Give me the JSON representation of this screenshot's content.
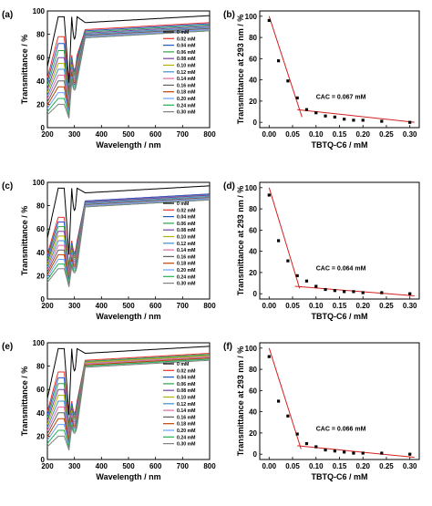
{
  "chart_data": [
    {
      "panel_label": "(a)",
      "type": "line",
      "xlabel": "Wavelength / nm",
      "ylabel": "Transmittance / %",
      "xlim": [
        200,
        800
      ],
      "ylim": [
        0,
        100
      ],
      "xticks": [
        "200",
        "300",
        "400",
        "500",
        "600",
        "700",
        "800"
      ],
      "yticks": [
        "0",
        "20",
        "40",
        "60",
        "80",
        "100"
      ],
      "legend_position": "right-middle",
      "colors": [
        "#000000",
        "#e8312b",
        "#2456c9",
        "#30a24a",
        "#7a3fa0",
        "#b0b000",
        "#3b8fd0",
        "#e066a8",
        "#606060",
        "#c04000",
        "#6aa0ff",
        "#20b050",
        "#808080"
      ],
      "series": [
        {
          "name": "0 mM",
          "dip": 95,
          "plateau": 96,
          "valley": 95
        },
        {
          "name": "0.02 mM",
          "dip": 78,
          "plateau": 90,
          "valley": 62
        },
        {
          "name": "0.04 mM",
          "dip": 72,
          "plateau": 89,
          "valley": 60
        },
        {
          "name": "0.06 mM",
          "dip": 66,
          "plateau": 88,
          "valley": 58
        },
        {
          "name": "0.08 mM",
          "dip": 60,
          "plateau": 87,
          "valley": 56
        },
        {
          "name": "0.10 mM",
          "dip": 55,
          "plateau": 86,
          "valley": 54
        },
        {
          "name": "0.12 mM",
          "dip": 50,
          "plateau": 86,
          "valley": 52
        },
        {
          "name": "0.14 mM",
          "dip": 45,
          "plateau": 85,
          "valley": 50
        },
        {
          "name": "0.16 mM",
          "dip": 40,
          "plateau": 85,
          "valley": 48
        },
        {
          "name": "0.18 mM",
          "dip": 35,
          "plateau": 84,
          "valley": 46
        },
        {
          "name": "0.20 mM",
          "dip": 30,
          "plateau": 84,
          "valley": 44
        },
        {
          "name": "0.24 mM",
          "dip": 25,
          "plateau": 83,
          "valley": 42
        },
        {
          "name": "0.30 mM",
          "dip": 20,
          "plateau": 83,
          "valley": 40
        }
      ]
    },
    {
      "panel_label": "(b)",
      "type": "scatter",
      "xlabel": "TBTQ-C6 / mM",
      "ylabel": "Transmittance at 293 nm / %",
      "xlim": [
        -0.02,
        0.32
      ],
      "ylim": [
        -5,
        105
      ],
      "xticks": [
        "0.00",
        "0.05",
        "0.10",
        "0.15",
        "0.20",
        "0.25",
        "0.30"
      ],
      "yticks": [
        "0",
        "20",
        "40",
        "60",
        "80",
        "100"
      ],
      "annotation": "CAC = 0.067 mM",
      "points": [
        [
          0,
          96
        ],
        [
          0.02,
          58
        ],
        [
          0.04,
          39
        ],
        [
          0.06,
          23
        ],
        [
          0.08,
          12
        ],
        [
          0.1,
          9
        ],
        [
          0.12,
          6
        ],
        [
          0.14,
          5
        ],
        [
          0.16,
          3
        ],
        [
          0.18,
          2
        ],
        [
          0.2,
          2
        ],
        [
          0.24,
          1
        ],
        [
          0.3,
          0
        ]
      ],
      "fit_lines": [
        [
          [
            0,
            100
          ],
          [
            0.07,
            5
          ]
        ],
        [
          [
            0.06,
            12
          ],
          [
            0.31,
            0
          ]
        ]
      ]
    },
    {
      "panel_label": "(c)",
      "type": "line",
      "xlabel": "Wavelength / nm",
      "ylabel": "Transmittance / %",
      "xlim": [
        200,
        800
      ],
      "ylim": [
        0,
        100
      ],
      "xticks": [
        "200",
        "300",
        "400",
        "500",
        "600",
        "700",
        "800"
      ],
      "yticks": [
        "0",
        "20",
        "40",
        "60",
        "80",
        "100"
      ],
      "legend_position": "left-middle",
      "colors": [
        "#000000",
        "#e8312b",
        "#2456c9",
        "#30a24a",
        "#7a3fa0",
        "#b0b000",
        "#3b8fd0",
        "#e066a8",
        "#606060",
        "#c04000",
        "#6aa0ff",
        "#20b050",
        "#808080"
      ],
      "series": [
        {
          "name": "0 mM",
          "dip": 95,
          "plateau": 97,
          "valley": 95
        },
        {
          "name": "0.02 mM",
          "dip": 70,
          "plateau": 90,
          "valley": 50
        },
        {
          "name": "0.04 mM",
          "dip": 66,
          "plateau": 90,
          "valley": 48
        },
        {
          "name": "0.06 mM",
          "dip": 62,
          "plateau": 89,
          "valley": 46
        },
        {
          "name": "0.08 mM",
          "dip": 58,
          "plateau": 89,
          "valley": 44
        },
        {
          "name": "0.10 mM",
          "dip": 54,
          "plateau": 88,
          "valley": 42
        },
        {
          "name": "0.12 mM",
          "dip": 50,
          "plateau": 88,
          "valley": 40
        },
        {
          "name": "0.14 mM",
          "dip": 46,
          "plateau": 87,
          "valley": 38
        },
        {
          "name": "0.16 mM",
          "dip": 42,
          "plateau": 87,
          "valley": 36
        },
        {
          "name": "0.18 mM",
          "dip": 38,
          "plateau": 86,
          "valley": 34
        },
        {
          "name": "0.20 mM",
          "dip": 34,
          "plateau": 86,
          "valley": 32
        },
        {
          "name": "0.24 mM",
          "dip": 30,
          "plateau": 85,
          "valley": 30
        },
        {
          "name": "0.30 mM",
          "dip": 26,
          "plateau": 85,
          "valley": 28
        }
      ]
    },
    {
      "panel_label": "(d)",
      "type": "scatter",
      "xlabel": "TBTQ-C6 / mM",
      "ylabel": "Transmittance at 293 nm / %",
      "xlim": [
        -0.02,
        0.32
      ],
      "ylim": [
        -5,
        105
      ],
      "xticks": [
        "0.00",
        "0.05",
        "0.10",
        "0.15",
        "0.20",
        "0.25",
        "0.30"
      ],
      "yticks": [
        "0",
        "20",
        "40",
        "60",
        "80",
        "100"
      ],
      "annotation": "CAC = 0.064 mM",
      "points": [
        [
          0,
          93
        ],
        [
          0.02,
          50
        ],
        [
          0.04,
          31
        ],
        [
          0.06,
          17
        ],
        [
          0.08,
          12
        ],
        [
          0.1,
          7
        ],
        [
          0.12,
          4
        ],
        [
          0.14,
          3
        ],
        [
          0.16,
          2
        ],
        [
          0.18,
          2
        ],
        [
          0.2,
          1
        ],
        [
          0.24,
          1
        ],
        [
          0.3,
          0
        ]
      ],
      "fit_lines": [
        [
          [
            0,
            100
          ],
          [
            0.065,
            5
          ]
        ],
        [
          [
            0.055,
            7
          ],
          [
            0.31,
            -2
          ]
        ]
      ]
    },
    {
      "panel_label": "(e)",
      "type": "line",
      "xlabel": "Wavelength / nm",
      "ylabel": "Transmittance / %",
      "xlim": [
        200,
        800
      ],
      "ylim": [
        0,
        100
      ],
      "xticks": [
        "200",
        "300",
        "400",
        "500",
        "600",
        "700",
        "800"
      ],
      "yticks": [
        "0",
        "20",
        "40",
        "60",
        "80",
        "100"
      ],
      "legend_position": "right-middle",
      "colors": [
        "#000000",
        "#e8312b",
        "#2456c9",
        "#30a24a",
        "#7a3fa0",
        "#b0b000",
        "#3b8fd0",
        "#e066a8",
        "#606060",
        "#c04000",
        "#6aa0ff",
        "#20b050",
        "#808080"
      ],
      "series": [
        {
          "name": "0 mM",
          "dip": 95,
          "plateau": 97,
          "valley": 95
        },
        {
          "name": "0.02 mM",
          "dip": 75,
          "plateau": 91,
          "valley": 50
        },
        {
          "name": "0.04 mM",
          "dip": 70,
          "plateau": 90,
          "valley": 48
        },
        {
          "name": "0.06 mM",
          "dip": 65,
          "plateau": 90,
          "valley": 46
        },
        {
          "name": "0.08 mM",
          "dip": 60,
          "plateau": 89,
          "valley": 44
        },
        {
          "name": "0.10 mM",
          "dip": 55,
          "plateau": 89,
          "valley": 42
        },
        {
          "name": "0.12 mM",
          "dip": 50,
          "plateau": 88,
          "valley": 40
        },
        {
          "name": "0.14 mM",
          "dip": 45,
          "plateau": 88,
          "valley": 38
        },
        {
          "name": "0.16 mM",
          "dip": 40,
          "plateau": 87,
          "valley": 36
        },
        {
          "name": "0.18 mM",
          "dip": 35,
          "plateau": 87,
          "valley": 34
        },
        {
          "name": "0.20 mM",
          "dip": 30,
          "plateau": 86,
          "valley": 32
        },
        {
          "name": "0.24 mM",
          "dip": 25,
          "plateau": 86,
          "valley": 30
        },
        {
          "name": "0.30 mM",
          "dip": 20,
          "plateau": 85,
          "valley": 28
        }
      ]
    },
    {
      "panel_label": "(f)",
      "type": "scatter",
      "xlabel": "TBTQ-C6 / mM",
      "ylabel": "Transmittance at 293 nm / %",
      "xlim": [
        -0.02,
        0.32
      ],
      "ylim": [
        -5,
        105
      ],
      "xticks": [
        "0.00",
        "0.05",
        "0.10",
        "0.15",
        "0.20",
        "0.25",
        "0.30"
      ],
      "yticks": [
        "0",
        "20",
        "40",
        "60",
        "80",
        "100"
      ],
      "annotation": "CAC = 0.066 mM",
      "points": [
        [
          0,
          92
        ],
        [
          0.02,
          50
        ],
        [
          0.04,
          36
        ],
        [
          0.06,
          19
        ],
        [
          0.08,
          10
        ],
        [
          0.1,
          7
        ],
        [
          0.12,
          4
        ],
        [
          0.14,
          3
        ],
        [
          0.16,
          2
        ],
        [
          0.18,
          1
        ],
        [
          0.2,
          1
        ],
        [
          0.24,
          1
        ],
        [
          0.3,
          0
        ]
      ],
      "fit_lines": [
        [
          [
            0,
            100
          ],
          [
            0.068,
            5
          ]
        ],
        [
          [
            0.06,
            8
          ],
          [
            0.31,
            -3
          ]
        ]
      ]
    }
  ]
}
